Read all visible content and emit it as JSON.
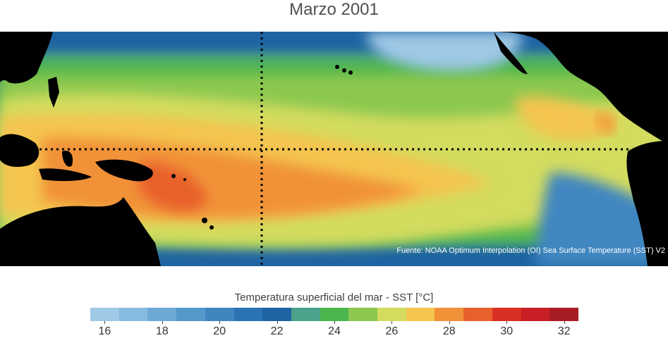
{
  "title": "Marzo 2001",
  "map": {
    "region": "Tropical Pacific Ocean",
    "equator_line": "dotted",
    "meridian_line": "dotted",
    "land_color": "#000000"
  },
  "source": "Fuente: NOAA Optimum Interpolation (OI) Sea Surface Temperature (SST) V2",
  "colorbar": {
    "label": "Temperatura superficial del mar - SST  [°C]",
    "ticks": [
      "16",
      "18",
      "20",
      "22",
      "24",
      "26",
      "28",
      "30",
      "32"
    ],
    "colors": [
      "#9fc9e6",
      "#88bbe0",
      "#6ea9d6",
      "#5598cc",
      "#3f86c1",
      "#2b74b3",
      "#1f64a2",
      "#4aa28b",
      "#4db54e",
      "#8cc84f",
      "#d3dc5e",
      "#f4c54f",
      "#f19238",
      "#e8602b",
      "#d93024",
      "#c81f26",
      "#a81c24"
    ]
  }
}
